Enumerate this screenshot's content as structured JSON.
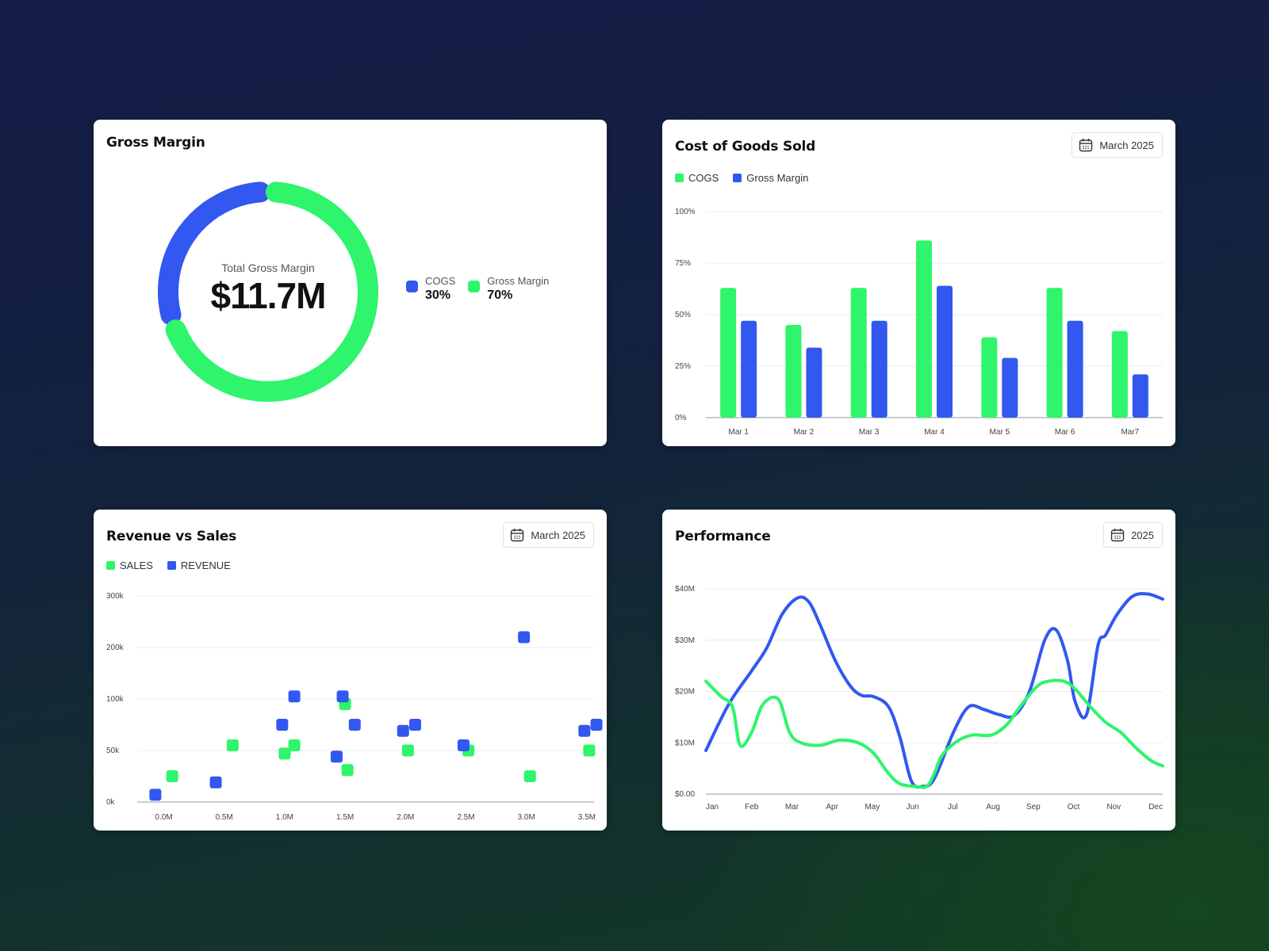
{
  "colors": {
    "green": "#2ef56b",
    "blue": "#3258f0",
    "grid": "#e9ebee",
    "axis": "#c9ccd1"
  },
  "gross_margin_card": {
    "title": "Gross Margin",
    "center_label": "Total Gross Margin",
    "center_value": "$11.7M",
    "legend": [
      {
        "name": "COGS",
        "value": "30%",
        "color": "#3258f0"
      },
      {
        "name": "Gross Margin",
        "value": "70%",
        "color": "#2ef56b"
      }
    ]
  },
  "cogs_card": {
    "title": "Cost of Goods Sold",
    "date_button": "March 2025",
    "date_icon": "calendar-icon",
    "legend": [
      {
        "name": "COGS",
        "color": "#2ef56b"
      },
      {
        "name": "Gross Margin",
        "color": "#3258f0"
      }
    ]
  },
  "rvs_card": {
    "title": "Revenue vs Sales",
    "date_button": "March 2025",
    "date_icon": "calendar-icon",
    "legend": [
      {
        "name": "SALES",
        "color": "#2ef56b"
      },
      {
        "name": "REVENUE",
        "color": "#3258f0"
      }
    ]
  },
  "perf_card": {
    "title": "Performance",
    "date_button": "2025",
    "date_icon": "calendar-icon"
  },
  "chart_data": [
    {
      "type": "pie",
      "variant": "donut",
      "title": "Gross Margin",
      "slices": [
        {
          "name": "COGS",
          "value": 30
        },
        {
          "name": "Gross Margin",
          "value": 70
        }
      ]
    },
    {
      "type": "bar",
      "title": "Cost of Goods Sold",
      "categories": [
        "Mar 1",
        "Mar 2",
        "Mar 3",
        "Mar 4",
        "Mar 5",
        "Mar 6",
        "Mar7"
      ],
      "series": [
        {
          "name": "COGS",
          "values": [
            63,
            45,
            63,
            86,
            39,
            63,
            42
          ]
        },
        {
          "name": "Gross Margin",
          "values": [
            47,
            34,
            47,
            64,
            29,
            47,
            21
          ]
        }
      ],
      "ylim": [
        0,
        100
      ],
      "yticks": [
        "0%",
        "25%",
        "50%",
        "75%",
        "100%"
      ],
      "grid": true,
      "legend": "top-left"
    },
    {
      "type": "scatter",
      "title": "Revenue vs Sales",
      "xticks": [
        "0.0M",
        "0.5M",
        "1.0M",
        "1.5M",
        "2.0M",
        "2.5M",
        "3.0M",
        "3.5M"
      ],
      "yticks": [
        "0k",
        "50k",
        "100k",
        "200k",
        "300k"
      ],
      "xlim": [
        -0.22,
        3.56
      ],
      "series": [
        {
          "name": "SALES",
          "points": [
            [
              0.07,
              25
            ],
            [
              0.57,
              55
            ],
            [
              1.0,
              47
            ],
            [
              1.08,
              55
            ],
            [
              1.5,
              95
            ],
            [
              1.52,
              31
            ],
            [
              2.02,
              50
            ],
            [
              2.52,
              50
            ],
            [
              3.03,
              25
            ],
            [
              3.52,
              50
            ]
          ]
        },
        {
          "name": "REVENUE",
          "points": [
            [
              -0.07,
              7
            ],
            [
              0.43,
              19
            ],
            [
              0.98,
              75
            ],
            [
              1.08,
              105
            ],
            [
              1.43,
              44
            ],
            [
              1.48,
              105
            ],
            [
              1.58,
              75
            ],
            [
              1.98,
              69
            ],
            [
              2.08,
              75
            ],
            [
              2.48,
              55
            ],
            [
              2.98,
              220
            ],
            [
              3.48,
              69
            ],
            [
              3.58,
              75
            ]
          ]
        }
      ],
      "grid": true,
      "legend": "top-left"
    },
    {
      "type": "line",
      "title": "Performance",
      "categories": [
        "Jan",
        "Feb",
        "Mar",
        "Apr",
        "May",
        "Jun",
        "Jul",
        "Aug",
        "Sep",
        "Oct",
        "Nov",
        "Dec"
      ],
      "yticks": [
        "$0.00",
        "$10M",
        "$20M",
        "$30M",
        "$40M"
      ],
      "ylim": [
        0,
        40
      ],
      "series": [
        {
          "name": "",
          "color": "#3258f0",
          "x": [
            0,
            0.6,
            1.2,
            1.6,
            2.0,
            2.4,
            2.7,
            3.0,
            3.4,
            3.8,
            4.1,
            4.4,
            4.8,
            5.1,
            5.4,
            5.7,
            6.0,
            6.5,
            6.9,
            7.3,
            7.7,
            8.1,
            8.5,
            8.9,
            9.2,
            9.5,
            9.7,
            10.0,
            10.3,
            10.5,
            10.8,
            11.2,
            11.6,
            12.0
          ],
          "y": [
            8.5,
            17.5,
            24,
            28.5,
            35,
            38.2,
            37.5,
            33,
            26,
            21,
            19.2,
            19,
            17,
            11,
            2.5,
            1.5,
            3,
            12,
            17,
            16.5,
            15.5,
            15.3,
            20,
            30,
            32,
            26,
            18,
            15.5,
            29,
            31,
            35,
            38.5,
            39,
            38
          ]
        },
        {
          "name": "",
          "color": "#2ef56b",
          "x": [
            0,
            0.4,
            0.7,
            0.9,
            1.2,
            1.5,
            1.9,
            2.2,
            2.5,
            3.0,
            3.5,
            4.0,
            4.4,
            4.8,
            5.1,
            5.5,
            5.8,
            6.0,
            6.2,
            6.6,
            7.0,
            7.5,
            7.9,
            8.3,
            8.7,
            9.0,
            9.4,
            9.7,
            10.1,
            10.5,
            10.9,
            11.3,
            11.7,
            12.0
          ],
          "y": [
            22,
            19,
            17,
            9.5,
            12,
            17.5,
            18.5,
            12,
            10,
            9.5,
            10.5,
            10,
            8,
            4,
            2,
            1.5,
            1.5,
            4,
            7.5,
            10.3,
            11.5,
            11.5,
            13.5,
            17.5,
            21,
            22,
            22,
            20.5,
            17,
            14,
            12,
            9,
            6.5,
            5.5
          ]
        }
      ],
      "grid": true
    }
  ]
}
